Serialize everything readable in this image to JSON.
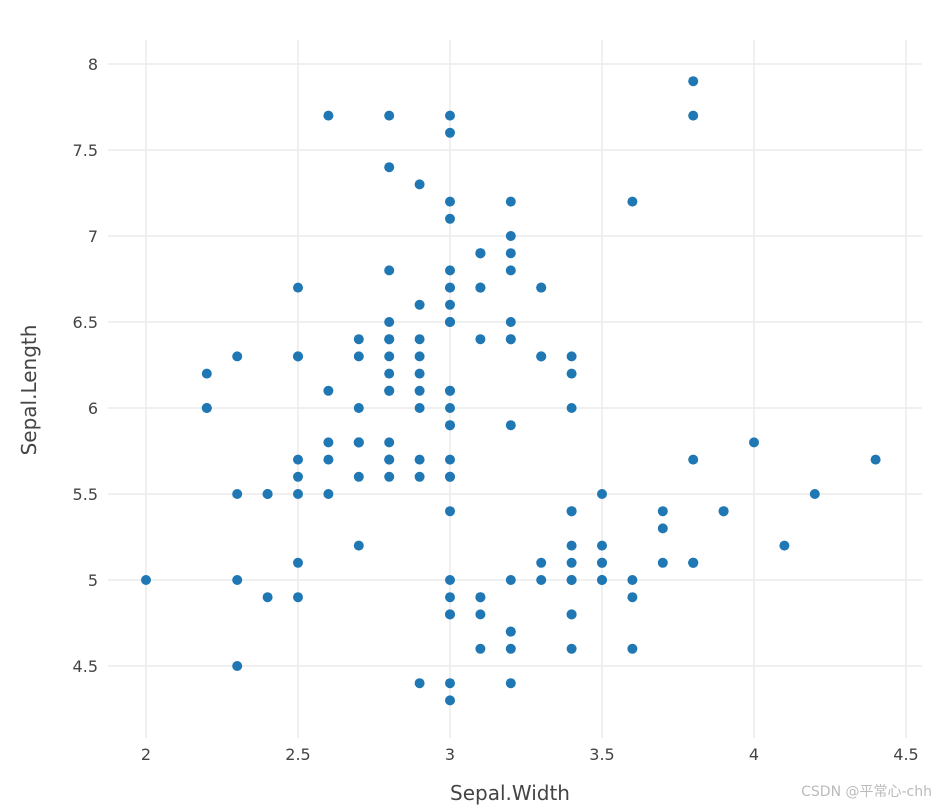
{
  "chart_data": {
    "type": "scatter",
    "title": "",
    "xlabel": "Sepal.Width",
    "ylabel": "Sepal.Length",
    "xlim": [
      1.85,
      4.55
    ],
    "ylim": [
      4.1,
      8.1
    ],
    "xticks": [
      2,
      2.5,
      3,
      3.5,
      4,
      4.5
    ],
    "xtick_labels": [
      "2",
      "2.5",
      "3",
      "3.5",
      "4",
      "4.5"
    ],
    "yticks": [
      4.5,
      5,
      5.5,
      6,
      6.5,
      7,
      7.5,
      8
    ],
    "ytick_labels": [
      "4.5",
      "5",
      "5.5",
      "6",
      "6.5",
      "7",
      "7.5",
      "8"
    ],
    "grid": true,
    "legend": null,
    "marker_color": "#1f77b4",
    "points": [
      [
        3.5,
        5.1
      ],
      [
        3.0,
        4.9
      ],
      [
        3.2,
        4.7
      ],
      [
        3.1,
        4.6
      ],
      [
        3.6,
        5.0
      ],
      [
        3.9,
        5.4
      ],
      [
        3.4,
        4.6
      ],
      [
        3.4,
        5.0
      ],
      [
        2.9,
        4.4
      ],
      [
        3.1,
        4.9
      ],
      [
        3.7,
        5.4
      ],
      [
        3.4,
        4.8
      ],
      [
        3.0,
        4.8
      ],
      [
        3.0,
        4.3
      ],
      [
        4.0,
        5.8
      ],
      [
        4.4,
        5.7
      ],
      [
        3.9,
        5.4
      ],
      [
        3.5,
        5.1
      ],
      [
        3.8,
        5.7
      ],
      [
        3.8,
        5.1
      ],
      [
        3.4,
        5.4
      ],
      [
        3.7,
        5.1
      ],
      [
        3.6,
        4.6
      ],
      [
        3.3,
        5.1
      ],
      [
        3.4,
        4.8
      ],
      [
        3.0,
        5.0
      ],
      [
        3.4,
        5.0
      ],
      [
        3.5,
        5.2
      ],
      [
        3.4,
        5.2
      ],
      [
        3.2,
        4.7
      ],
      [
        3.1,
        4.8
      ],
      [
        3.4,
        5.4
      ],
      [
        4.1,
        5.2
      ],
      [
        4.2,
        5.5
      ],
      [
        3.1,
        4.9
      ],
      [
        3.2,
        5.0
      ],
      [
        3.5,
        5.5
      ],
      [
        3.6,
        4.9
      ],
      [
        3.0,
        4.4
      ],
      [
        3.4,
        5.1
      ],
      [
        3.5,
        5.0
      ],
      [
        2.3,
        4.5
      ],
      [
        3.2,
        4.4
      ],
      [
        3.5,
        5.0
      ],
      [
        3.8,
        5.1
      ],
      [
        3.0,
        4.8
      ],
      [
        3.8,
        5.1
      ],
      [
        3.2,
        4.6
      ],
      [
        3.7,
        5.3
      ],
      [
        3.3,
        5.0
      ],
      [
        3.2,
        7.0
      ],
      [
        3.2,
        6.4
      ],
      [
        3.1,
        6.9
      ],
      [
        2.3,
        5.5
      ],
      [
        2.8,
        6.5
      ],
      [
        2.8,
        5.7
      ],
      [
        3.3,
        6.3
      ],
      [
        2.4,
        4.9
      ],
      [
        2.9,
        6.6
      ],
      [
        2.7,
        5.2
      ],
      [
        2.0,
        5.0
      ],
      [
        3.0,
        5.9
      ],
      [
        2.2,
        6.0
      ],
      [
        2.9,
        6.1
      ],
      [
        2.9,
        5.6
      ],
      [
        3.1,
        6.7
      ],
      [
        3.0,
        5.6
      ],
      [
        2.7,
        5.8
      ],
      [
        2.2,
        6.2
      ],
      [
        2.5,
        5.6
      ],
      [
        3.2,
        5.9
      ],
      [
        2.8,
        6.1
      ],
      [
        2.5,
        6.3
      ],
      [
        2.8,
        6.1
      ],
      [
        2.9,
        6.4
      ],
      [
        3.0,
        6.6
      ],
      [
        2.8,
        6.8
      ],
      [
        3.0,
        6.7
      ],
      [
        2.9,
        6.0
      ],
      [
        2.6,
        5.7
      ],
      [
        2.4,
        5.5
      ],
      [
        2.4,
        5.5
      ],
      [
        2.7,
        5.8
      ],
      [
        2.7,
        6.0
      ],
      [
        3.0,
        5.4
      ],
      [
        3.4,
        6.0
      ],
      [
        3.1,
        6.7
      ],
      [
        2.3,
        6.3
      ],
      [
        3.0,
        5.6
      ],
      [
        2.5,
        5.5
      ],
      [
        2.6,
        5.5
      ],
      [
        3.0,
        6.1
      ],
      [
        2.6,
        5.8
      ],
      [
        2.3,
        5.0
      ],
      [
        2.7,
        5.6
      ],
      [
        3.0,
        5.7
      ],
      [
        2.9,
        5.7
      ],
      [
        2.9,
        6.2
      ],
      [
        2.5,
        5.1
      ],
      [
        2.8,
        5.7
      ],
      [
        3.3,
        6.3
      ],
      [
        2.7,
        5.8
      ],
      [
        3.0,
        7.1
      ],
      [
        2.9,
        6.3
      ],
      [
        3.0,
        6.5
      ],
      [
        3.0,
        7.6
      ],
      [
        2.5,
        4.9
      ],
      [
        2.9,
        7.3
      ],
      [
        2.5,
        6.7
      ],
      [
        3.6,
        7.2
      ],
      [
        3.2,
        6.5
      ],
      [
        2.7,
        6.4
      ],
      [
        3.0,
        6.8
      ],
      [
        2.5,
        5.7
      ],
      [
        2.8,
        5.8
      ],
      [
        3.2,
        6.4
      ],
      [
        3.0,
        6.5
      ],
      [
        3.8,
        7.7
      ],
      [
        2.6,
        7.7
      ],
      [
        2.2,
        6.0
      ],
      [
        3.2,
        6.9
      ],
      [
        2.8,
        5.6
      ],
      [
        2.8,
        7.7
      ],
      [
        2.7,
        6.3
      ],
      [
        3.3,
        6.7
      ],
      [
        3.2,
        7.2
      ],
      [
        2.8,
        6.2
      ],
      [
        3.0,
        6.1
      ],
      [
        2.8,
        6.4
      ],
      [
        3.0,
        7.2
      ],
      [
        2.8,
        7.4
      ],
      [
        3.8,
        7.9
      ],
      [
        2.8,
        6.4
      ],
      [
        2.8,
        6.3
      ],
      [
        2.6,
        6.1
      ],
      [
        3.0,
        7.7
      ],
      [
        3.4,
        6.3
      ],
      [
        3.1,
        6.4
      ],
      [
        3.0,
        6.0
      ],
      [
        3.1,
        6.9
      ],
      [
        3.1,
        6.7
      ],
      [
        3.1,
        6.9
      ],
      [
        2.7,
        5.8
      ],
      [
        3.2,
        6.8
      ],
      [
        3.3,
        6.7
      ],
      [
        3.0,
        6.7
      ],
      [
        2.5,
        6.3
      ],
      [
        3.0,
        6.5
      ],
      [
        3.4,
        6.2
      ],
      [
        3.0,
        5.9
      ]
    ]
  },
  "watermark": "CSDN @平常心-chh"
}
